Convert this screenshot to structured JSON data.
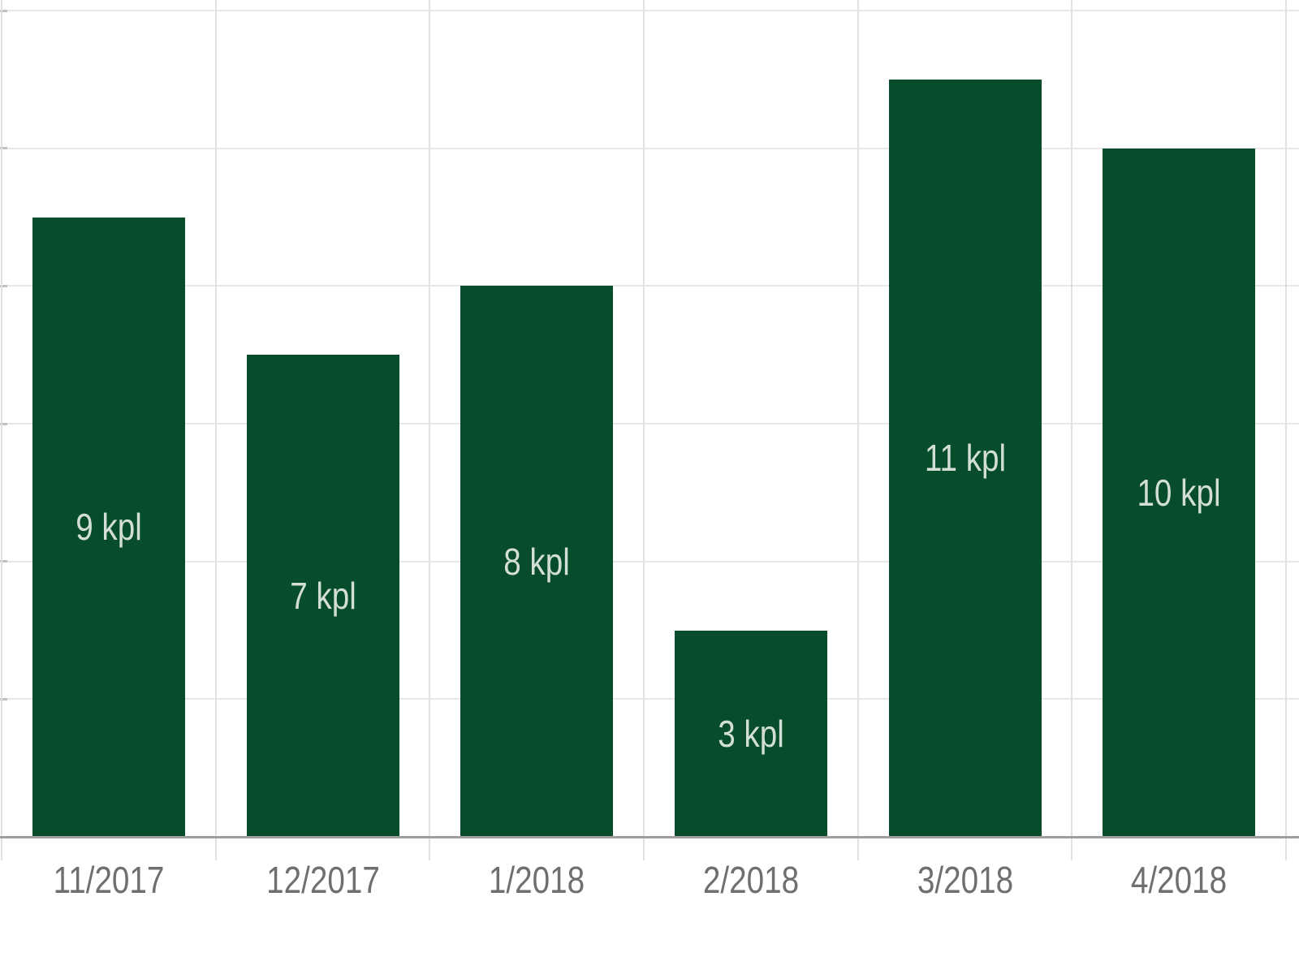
{
  "chart_data": {
    "type": "bar",
    "title": "",
    "xlabel": "",
    "ylabel": "",
    "categories": [
      "11/2017",
      "12/2017",
      "1/2018",
      "2/2018",
      "3/2018",
      "4/2018"
    ],
    "values": [
      9,
      7,
      8,
      3,
      11,
      10
    ],
    "bar_labels": [
      "9 kpl",
      "7 kpl",
      "8 kpl",
      "3 kpl",
      "11 kpl",
      "10 kpl"
    ],
    "unit": "kpl",
    "ylim": [
      0,
      12
    ],
    "gridline_interval": 2,
    "grid": "on",
    "legend": "none",
    "y_axis_labels_visible": false,
    "colors": {
      "bar": "#074d2b",
      "bar_label": "#d3ded6",
      "gridline_h": "#e7e7e7",
      "gridline_v": "#e1e1e1",
      "axis_line": "#9e9e9e",
      "tick_stub": "#c2c2c2",
      "tick_label": "#6f6f6f",
      "background": "#ffffff"
    }
  }
}
